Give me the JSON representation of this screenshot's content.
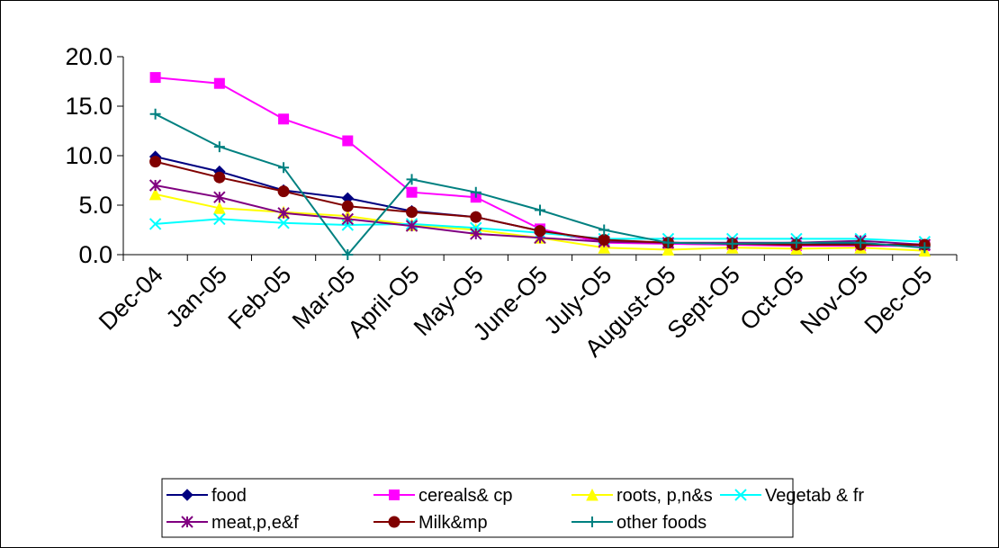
{
  "chart_data": {
    "type": "line",
    "title": "",
    "xlabel": "",
    "ylabel": "",
    "ylim": [
      0,
      20
    ],
    "yticks": [
      "0.0",
      "5.0",
      "10.0",
      "15.0",
      "20.0"
    ],
    "grid": false,
    "legend_position": "bottom",
    "categories": [
      "Dec-04",
      "Jan-05",
      "Feb-05",
      "Mar-05",
      "April-O5",
      "May-O5",
      "June-O5",
      "July-O5",
      "August-O5",
      "Sept-O5",
      "Oct-O5",
      "Nov-O5",
      "Dec-O5"
    ],
    "series": [
      {
        "name": "food",
        "color": "#000080",
        "marker": "diamond",
        "values": [
          9.9,
          8.4,
          6.5,
          5.7,
          4.4,
          3.8,
          2.4,
          1.3,
          1.2,
          1.1,
          1.0,
          1.1,
          0.8
        ]
      },
      {
        "name": "cereals& cp",
        "color": "#FF00FF",
        "marker": "square",
        "values": [
          17.9,
          17.3,
          13.7,
          11.5,
          6.3,
          5.8,
          2.6,
          1.2,
          1.1,
          1.0,
          0.9,
          0.9,
          0.9
        ]
      },
      {
        "name": "roots, p,n&s",
        "color": "#FFFF00",
        "marker": "triangle",
        "values": [
          6.1,
          4.7,
          4.3,
          3.9,
          3.0,
          2.5,
          1.7,
          0.7,
          0.5,
          0.7,
          0.6,
          0.7,
          0.4
        ]
      },
      {
        "name": "Vegetab & fr",
        "color": "#00FFFF",
        "marker": "x",
        "values": [
          3.1,
          3.6,
          3.2,
          3.0,
          3.1,
          2.7,
          2.2,
          1.6,
          1.6,
          1.6,
          1.6,
          1.6,
          1.3
        ]
      },
      {
        "name": "meat,p,e&f",
        "color": "#800080",
        "marker": "asterisk",
        "values": [
          7.0,
          5.8,
          4.2,
          3.6,
          2.9,
          2.1,
          1.7,
          1.3,
          1.2,
          1.2,
          1.2,
          1.4,
          1.0
        ]
      },
      {
        "name": "Milk&mp",
        "color": "#800000",
        "marker": "circle",
        "values": [
          9.4,
          7.8,
          6.4,
          4.9,
          4.3,
          3.8,
          2.4,
          1.5,
          1.2,
          1.1,
          1.0,
          1.0,
          1.0
        ]
      },
      {
        "name": "other foods",
        "color": "#008080",
        "marker": "plus",
        "values": [
          14.2,
          10.9,
          8.8,
          0.0,
          7.6,
          6.3,
          4.5,
          2.5,
          1.2,
          1.1,
          1.2,
          1.2,
          0.7
        ]
      }
    ]
  }
}
